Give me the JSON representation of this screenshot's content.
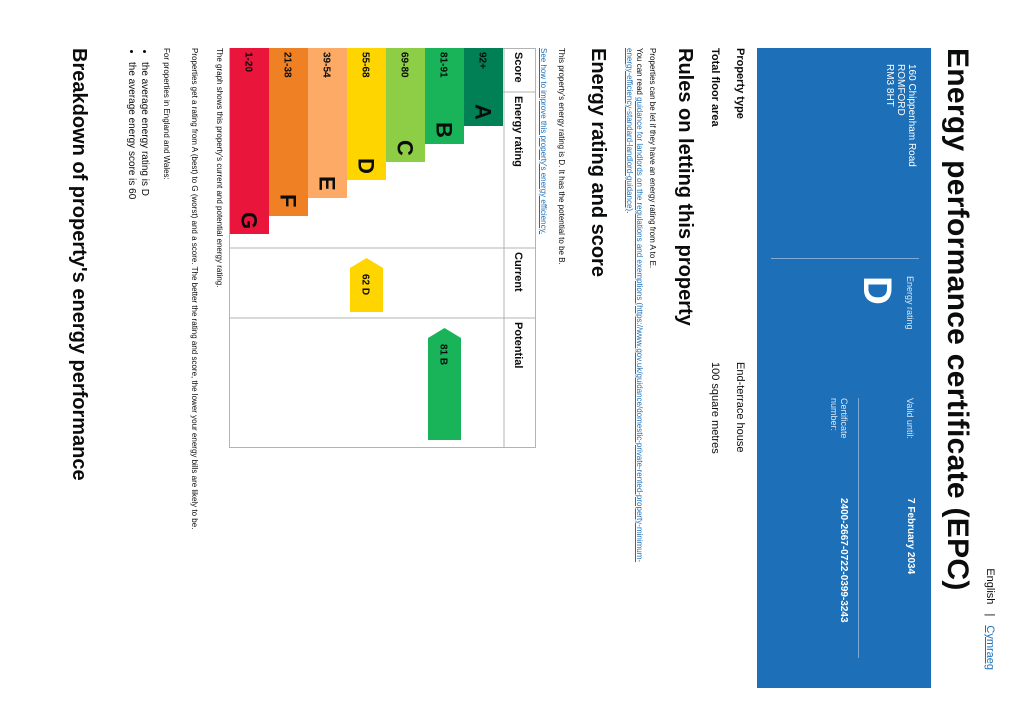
{
  "language": {
    "english": "English",
    "separator": "|",
    "welsh": "Cymraeg"
  },
  "title": "Energy performance certificate (EPC)",
  "property": {
    "address_lines": [
      "160 Chippenham Road",
      "ROMFORD",
      "RM3 8HT"
    ],
    "energy_rating_label": "Energy rating",
    "energy_rating": "D",
    "valid_until_label": "Valid until:",
    "valid_until": "7 February 2034",
    "certificate_label": "Certificate number:",
    "certificate_number": "2400-2667-0722-0399-3243"
  },
  "details": [
    {
      "label": "Property type",
      "value": "End-terrace house"
    },
    {
      "label": "Total floor area",
      "value": "100 square metres"
    }
  ],
  "rules": {
    "heading": "Rules on letting this property",
    "intro": "Properties can be let if they have an energy rating from A to E.",
    "guidance_prefix": "You can read ",
    "guidance_link": "guidance for landlords on the regulations and exemptions (https://www.gov.uk/guidance/domestic-private-rented-property-minimum-energy-efficiency-standard-landlord-guidance)",
    "guidance_suffix": "."
  },
  "rating_section": {
    "heading": "Energy rating and score",
    "summary": "This property's energy rating is D. It has the potential to be B.",
    "improve_link": "See how to improve this property's energy efficiency."
  },
  "chart_data": {
    "type": "table",
    "headers": {
      "score": "Score",
      "rating": "Energy rating",
      "current": "Current",
      "potential": "Potential"
    },
    "bands": [
      {
        "score": "92+",
        "letter": "A",
        "color": "#008054"
      },
      {
        "score": "81-91",
        "letter": "B",
        "color": "#19b459"
      },
      {
        "score": "69-80",
        "letter": "C",
        "color": "#8dce46"
      },
      {
        "score": "55-68",
        "letter": "D",
        "color": "#ffd500"
      },
      {
        "score": "39-54",
        "letter": "E",
        "color": "#fcaa65"
      },
      {
        "score": "21-38",
        "letter": "F",
        "color": "#ef8023"
      },
      {
        "score": "1-20",
        "letter": "G",
        "color": "#e9153b"
      }
    ],
    "current": {
      "score": 62,
      "letter": "D",
      "label": "62 D",
      "color": "#ffd500"
    },
    "potential": {
      "score": 81,
      "letter": "B",
      "label": "81 B",
      "color": "#19b459"
    }
  },
  "after_chart": {
    "caption": "The graph shows this property's current and potential energy rating.",
    "scale_text": "Properties get a rating from A (best) to G (worst) and a score. The better the rating and score, the lower your energy bills are likely to be.",
    "averages_intro": "For properties in England and Wales:",
    "averages": [
      "the average energy rating is D",
      "the average energy score is 60"
    ]
  },
  "breakdown_heading": "Breakdown of property's energy performance"
}
